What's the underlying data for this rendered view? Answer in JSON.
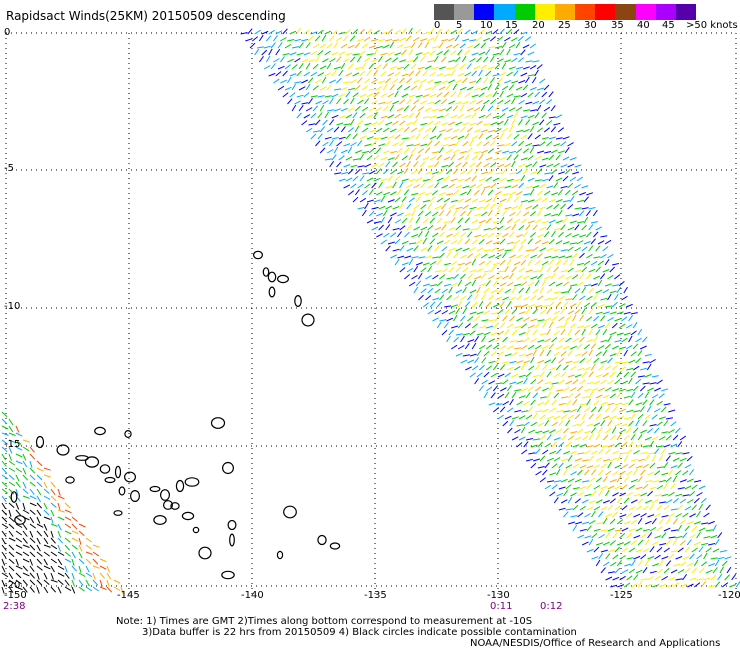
{
  "title": "Rapidsact Winds(25KM) 20150509 descending",
  "legend": {
    "colors": [
      "#555555",
      "#999999",
      "#0000ff",
      "#00aaff",
      "#00cc00",
      "#ffee00",
      "#ffaa00",
      "#ff4400",
      "#ff0000",
      "#8b4513",
      "#ff00ff",
      "#aa00ff",
      "#5500aa"
    ],
    "labels": [
      "0",
      "5",
      "10",
      "15",
      "20",
      "25",
      "30",
      "35",
      "40",
      "45",
      ">50 knots"
    ]
  },
  "axes": {
    "lat_labels": [
      "0",
      "-5",
      "-10",
      "-15",
      "-20"
    ],
    "lon_labels": [
      "-150",
      "-145",
      "-140",
      "-135",
      "-130",
      "-125",
      "-120"
    ]
  },
  "times": [
    "2:38",
    "0:11",
    "0:12"
  ],
  "notes": [
    "Note: 1) Times are GMT 2)Times along bottom correspond to measurement at -10S",
    "3)Data buffer is 22 hrs from 20150509 4) Black circles indicate possible contamination",
    "NOAA/NESDIS/Office of Research and Applications"
  ]
}
